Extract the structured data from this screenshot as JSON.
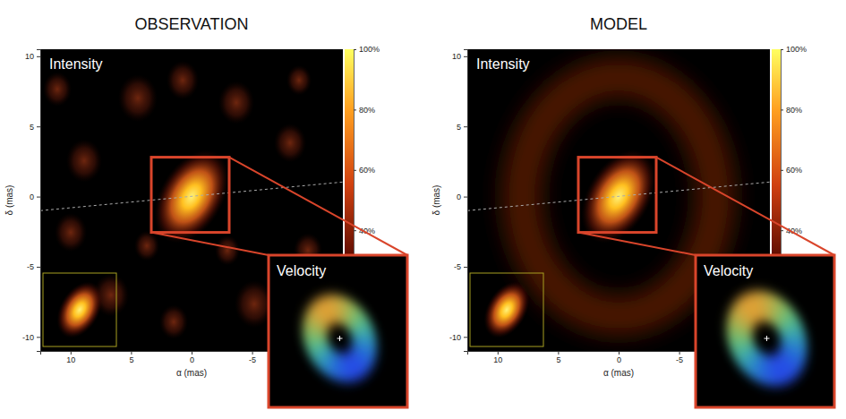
{
  "chart_data": [
    {
      "type": "image",
      "title": "OBSERVATION",
      "xlabel": "α (mas)",
      "ylabel": "δ (mas)",
      "xlim": [
        12.5,
        -12.5
      ],
      "ylim": [
        -11,
        10.5
      ],
      "xticks": [
        10,
        5,
        0,
        -5
      ],
      "yticks": [
        10,
        5,
        0,
        -5,
        -10
      ],
      "colorbar": {
        "range": [
          0,
          100
        ],
        "ticks": [
          {
            "value": 40,
            "label": "40%"
          },
          {
            "value": 60,
            "label": "60%"
          },
          {
            "value": 80,
            "label": "80%"
          },
          {
            "value": 100,
            "label": "100%"
          }
        ]
      },
      "annotations": [
        "Intensity",
        "Velocity"
      ]
    },
    {
      "type": "image",
      "title": "MODEL",
      "xlabel": "α (mas)",
      "ylabel": "δ (mas)",
      "xlim": [
        12.5,
        -12.5
      ],
      "ylim": [
        -11,
        10.5
      ],
      "xticks": [
        10,
        5,
        0,
        -5
      ],
      "yticks": [
        10,
        5,
        0,
        -5,
        -10
      ],
      "colorbar": {
        "range": [
          0,
          100
        ],
        "ticks": [
          {
            "value": 40,
            "label": "40%"
          },
          {
            "value": 60,
            "label": "60%"
          },
          {
            "value": 80,
            "label": "80%"
          },
          {
            "value": 100,
            "label": "100%"
          }
        ]
      },
      "annotations": [
        "Intensity",
        "Velocity"
      ]
    }
  ]
}
